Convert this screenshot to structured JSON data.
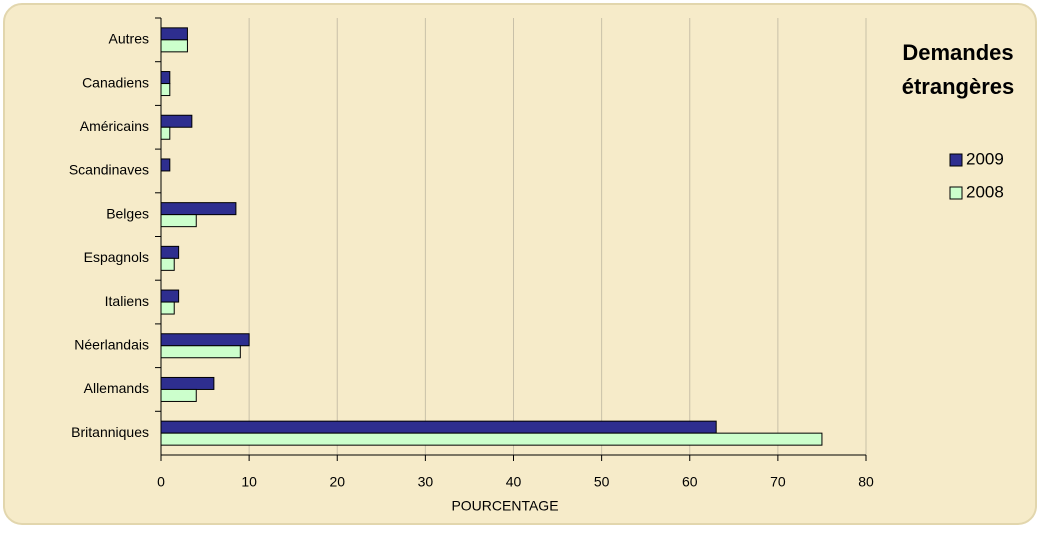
{
  "chart_data": {
    "type": "hbar",
    "title": "Demandes étrangères",
    "xlabel": "POURCENTAGE",
    "categories": [
      "Autres",
      "Canadiens",
      "Américains",
      "Scandinaves",
      "Belges",
      "Espagnols",
      "Italiens",
      "Néerlandais",
      "Allemands",
      "Britanniques"
    ],
    "series": [
      {
        "name": "2009",
        "color": "#2e2e8f",
        "values": [
          3,
          1,
          3.5,
          1,
          8.5,
          2,
          2,
          10,
          6,
          63
        ]
      },
      {
        "name": "2008",
        "color": "#ccffcc",
        "values": [
          3,
          1,
          1,
          0,
          4,
          1.5,
          1.5,
          9,
          4,
          75
        ]
      }
    ],
    "xlim": [
      0,
      80
    ],
    "xticks": [
      0,
      10,
      20,
      30,
      40,
      50,
      60,
      70,
      80
    ],
    "grid": true,
    "legend": "right"
  }
}
